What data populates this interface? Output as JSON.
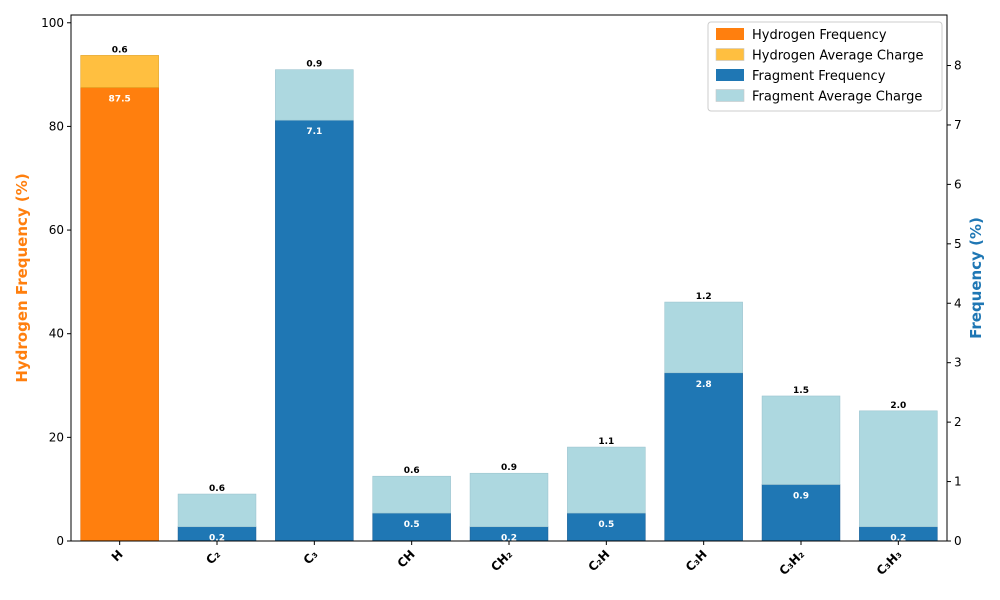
{
  "chart_data": {
    "type": "bar",
    "categories": [
      "H",
      "C₂",
      "C₃",
      "CH",
      "CH₂",
      "C₂H",
      "C₃H",
      "C₃H₂",
      "C₃H₃"
    ],
    "left_axis": {
      "label": "Hydrogen Frequency (%)",
      "ylim": [
        0,
        101.5
      ],
      "ticks": [
        0,
        20,
        40,
        60,
        80,
        100
      ],
      "color": "#ff7f0e"
    },
    "right_axis": {
      "label": "Frequency (%)",
      "ylim": [
        0,
        8.85
      ],
      "ticks": [
        0,
        1,
        2,
        3,
        4,
        5,
        6,
        7,
        8
      ],
      "color": "#1f77b4"
    },
    "series": [
      {
        "name": "Hydrogen Frequency",
        "axis": "left",
        "color": "#ff7f0e",
        "values": [
          87.5,
          null,
          null,
          null,
          null,
          null,
          null,
          null,
          null
        ],
        "labels": [
          "87.5",
          "",
          "",
          "",
          "",
          "",
          "",
          "",
          ""
        ]
      },
      {
        "name": "Hydrogen Average Charge",
        "axis": "left",
        "stacked_on": "Hydrogen Frequency",
        "color": "#ffbf40",
        "top_values": [
          93.7,
          null,
          null,
          null,
          null,
          null,
          null,
          null,
          null
        ],
        "labels": [
          "0.6",
          "",
          "",
          "",
          "",
          "",
          "",
          "",
          ""
        ]
      },
      {
        "name": "Fragment Frequency",
        "axis": "right",
        "color": "#1f77b4",
        "values": [
          null,
          0.24,
          7.08,
          0.47,
          0.24,
          0.47,
          2.83,
          0.95,
          0.24
        ],
        "labels": [
          "",
          "0.2",
          "7.1",
          "0.5",
          "0.2",
          "0.5",
          "2.8",
          "0.9",
          "0.2"
        ]
      },
      {
        "name": "Fragment Average Charge",
        "axis": "right",
        "stacked_on": "Fragment Frequency",
        "color": "#add8e0",
        "top_values": [
          null,
          0.79,
          7.93,
          1.09,
          1.14,
          1.58,
          4.02,
          2.44,
          2.19
        ],
        "labels": [
          "",
          "0.6",
          "0.9",
          "0.6",
          "0.9",
          "1.1",
          "1.2",
          "1.5",
          "2.0"
        ]
      }
    ],
    "legend": {
      "placement": "top-right",
      "entries": [
        "Hydrogen Frequency",
        "Hydrogen Average Charge",
        "Fragment Frequency",
        "Fragment Average Charge"
      ]
    },
    "grid": false
  }
}
